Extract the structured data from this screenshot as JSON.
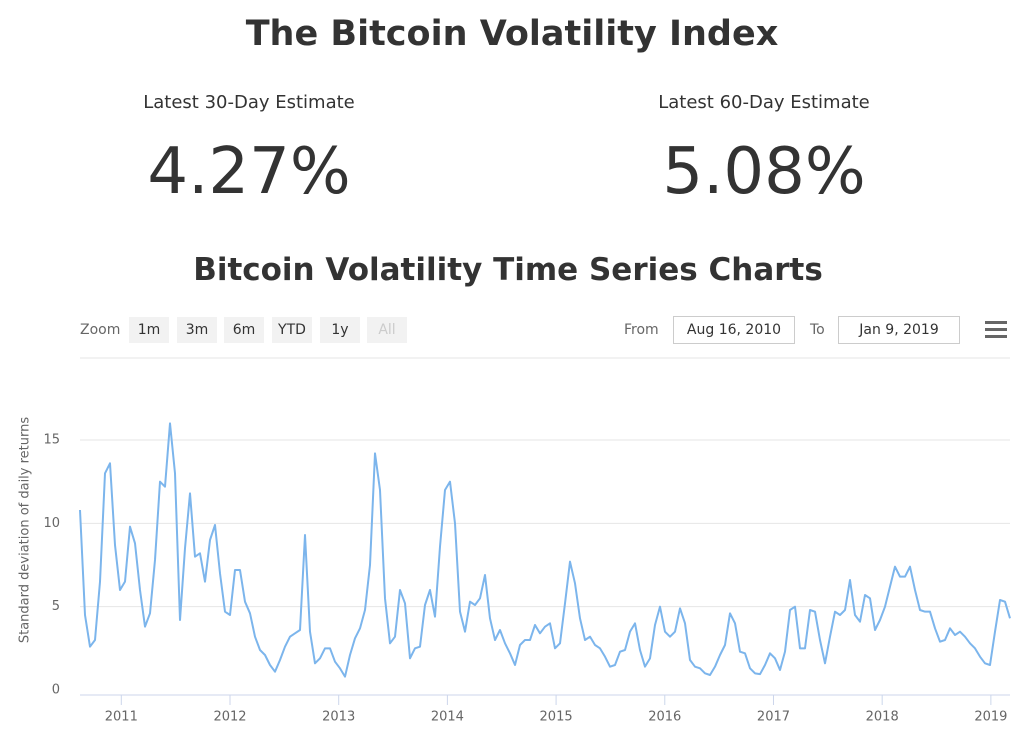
{
  "header": {
    "title": "The Bitcoin Volatility Index"
  },
  "stats": [
    {
      "label": "Latest 30-Day Estimate",
      "value": "4.27%"
    },
    {
      "label": "Latest 60-Day Estimate",
      "value": "5.08%"
    }
  ],
  "controls": {
    "zoom_label": "Zoom",
    "buttons": [
      "1m",
      "3m",
      "6m",
      "YTD",
      "1y",
      "All"
    ],
    "from_label": "From",
    "from": "Aug 16, 2010",
    "to_label": "To",
    "to": "Jan 9, 2019"
  },
  "chart_data": {
    "type": "line",
    "title": "Bitcoin Volatility Time Series Charts",
    "y_label": "Standard deviation of daily returns",
    "color": "#7cb5ec",
    "grid": true,
    "xlim": [
      2010.62,
      2019.176
    ],
    "xticks": [
      2011,
      2012,
      2013,
      2014,
      2015,
      2016,
      2017,
      2018,
      2019
    ],
    "ylim": [
      0,
      19.5
    ],
    "yticks": [
      0,
      5,
      10,
      15
    ],
    "x": [
      2010.62,
      2010.666,
      2010.712,
      2010.758,
      2010.804,
      2010.85,
      2010.896,
      2010.942,
      2010.988,
      2011.034,
      2011.08,
      2011.126,
      2011.172,
      2011.218,
      2011.264,
      2011.31,
      2011.356,
      2011.402,
      2011.448,
      2011.494,
      2011.54,
      2011.586,
      2011.632,
      2011.678,
      2011.724,
      2011.77,
      2011.816,
      2011.862,
      2011.908,
      2011.954,
      2012.0,
      2012.046,
      2012.092,
      2012.138,
      2012.184,
      2012.23,
      2012.276,
      2012.322,
      2012.368,
      2012.414,
      2012.46,
      2012.506,
      2012.552,
      2012.598,
      2012.644,
      2012.69,
      2012.736,
      2012.782,
      2012.828,
      2012.874,
      2012.92,
      2012.966,
      2013.012,
      2013.058,
      2013.104,
      2013.15,
      2013.196,
      2013.242,
      2013.288,
      2013.334,
      2013.38,
      2013.426,
      2013.472,
      2013.518,
      2013.564,
      2013.61,
      2013.656,
      2013.702,
      2013.748,
      2013.794,
      2013.84,
      2013.886,
      2013.932,
      2013.978,
      2014.024,
      2014.07,
      2014.116,
      2014.162,
      2014.208,
      2014.254,
      2014.3,
      2014.346,
      2014.392,
      2014.438,
      2014.484,
      2014.53,
      2014.576,
      2014.622,
      2014.668,
      2014.714,
      2014.76,
      2014.806,
      2014.852,
      2014.898,
      2014.944,
      2014.99,
      2015.036,
      2015.082,
      2015.128,
      2015.174,
      2015.22,
      2015.266,
      2015.312,
      2015.358,
      2015.404,
      2015.45,
      2015.496,
      2015.542,
      2015.588,
      2015.634,
      2015.68,
      2015.726,
      2015.772,
      2015.818,
      2015.864,
      2015.91,
      2015.956,
      2016.002,
      2016.048,
      2016.094,
      2016.14,
      2016.186,
      2016.232,
      2016.278,
      2016.324,
      2016.37,
      2016.416,
      2016.462,
      2016.508,
      2016.554,
      2016.6,
      2016.646,
      2016.692,
      2016.738,
      2016.784,
      2016.83,
      2016.876,
      2016.922,
      2016.968,
      2017.014,
      2017.06,
      2017.106,
      2017.152,
      2017.198,
      2017.244,
      2017.29,
      2017.336,
      2017.382,
      2017.428,
      2017.474,
      2017.52,
      2017.566,
      2017.612,
      2017.658,
      2017.704,
      2017.75,
      2017.796,
      2017.842,
      2017.888,
      2017.934,
      2017.98,
      2018.026,
      2018.072,
      2018.118,
      2018.164,
      2018.21,
      2018.256,
      2018.302,
      2018.348,
      2018.394,
      2018.44,
      2018.486,
      2018.532,
      2018.578,
      2018.624,
      2018.67,
      2018.716,
      2018.762,
      2018.808,
      2018.854,
      2018.9,
      2018.946,
      2018.992,
      2019.038,
      2019.084,
      2019.13,
      2019.176
    ],
    "values": [
      10.8,
      4.5,
      2.6,
      3.0,
      6.5,
      13,
      13.6,
      8.7,
      6,
      6.5,
      9.8,
      8.8,
      6,
      3.8,
      4.6,
      7.8,
      12.5,
      12.2,
      16.0,
      13,
      4.2,
      8.5,
      11.8,
      8,
      8.2,
      6.5,
      9.0,
      9.9,
      7,
      4.7,
      4.5,
      7.2,
      7.2,
      5.3,
      4.6,
      3.2,
      2.4,
      2.1,
      1.5,
      1.1,
      1.8,
      2.6,
      3.2,
      3.4,
      3.6,
      9.3,
      3.5,
      1.6,
      1.9,
      2.5,
      2.5,
      1.7,
      1.3,
      0.8,
      2.1,
      3.1,
      3.7,
      4.8,
      7.5,
      14.2,
      12,
      5.5,
      2.8,
      3.2,
      6.0,
      5.2,
      1.9,
      2.5,
      2.6,
      5.1,
      6.0,
      4.4,
      8.6,
      12,
      12.5,
      10,
      4.7,
      3.5,
      5.3,
      5.1,
      5.5,
      6.9,
      4.3,
      3.0,
      3.6,
      2.8,
      2.2,
      1.5,
      2.7,
      3.0,
      3.0,
      3.9,
      3.4,
      3.8,
      4.0,
      2.5,
      2.8,
      5.2,
      7.7,
      6.4,
      4.3,
      3.0,
      3.2,
      2.7,
      2.5,
      2.0,
      1.4,
      1.5,
      2.3,
      2.4,
      3.5,
      4.0,
      2.4,
      1.4,
      1.9,
      3.9,
      5,
      3.5,
      3.2,
      3.5,
      4.9,
      4.0,
      1.8,
      1.4,
      1.3,
      1.0,
      0.9,
      1.4,
      2.1,
      2.7,
      4.6,
      4.0,
      2.3,
      2.2,
      1.3,
      1.0,
      0.95,
      1.5,
      2.2,
      1.9,
      1.2,
      2.3,
      4.8,
      5.0,
      2.5,
      2.5,
      4.8,
      4.7,
      3.0,
      1.6,
      3.2,
      4.7,
      4.5,
      4.8,
      6.6,
      4.5,
      4.1,
      5.7,
      5.5,
      3.6,
      4.2,
      5.0,
      6.2,
      7.4,
      6.8,
      6.8,
      7.4,
      6.0,
      4.8,
      4.7,
      4.7,
      3.7,
      2.9,
      3.0,
      3.7,
      3.3,
      3.5,
      3.2,
      2.8,
      2.5,
      2.0,
      1.6,
      1.5,
      3.5,
      5.4,
      5.3,
      4.3
    ]
  }
}
